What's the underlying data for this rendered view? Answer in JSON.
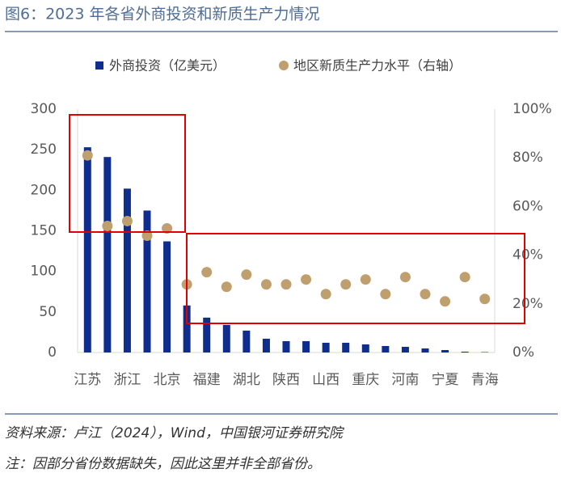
{
  "title": "图6：2023 年各省外商投资和新质生产力情况",
  "chart_data": {
    "type": "bar",
    "categories": [
      "江苏",
      null,
      "浙江",
      null,
      "北京",
      null,
      "福建",
      null,
      "湖北",
      null,
      "陕西",
      null,
      "山西",
      null,
      "重庆",
      null,
      "河南",
      null,
      "宁夏",
      null,
      "青海"
    ],
    "series": [
      {
        "name": "外商投资（亿美元）",
        "type": "bar",
        "color": "#0f2d8c",
        "axis": "y",
        "values": [
          253,
          241,
          202,
          175,
          137,
          58,
          43,
          34,
          27,
          17,
          14,
          14,
          12,
          12,
          10,
          8,
          7,
          5,
          3,
          1,
          0.5
        ]
      },
      {
        "name": "地区新质生产力水平（右轴）",
        "type": "scatter",
        "color": "#bf9f6e",
        "axis": "y2",
        "values": [
          81,
          52,
          54,
          48,
          51,
          28,
          33,
          27,
          32,
          28,
          28,
          30,
          24,
          28,
          30,
          24,
          31,
          24,
          21,
          31,
          22
        ]
      }
    ],
    "ylim": [
      0,
      300
    ],
    "yticks": [
      0,
      50,
      100,
      150,
      200,
      250,
      300
    ],
    "y2lim": [
      0,
      100
    ],
    "y2ticks": [
      {
        "value": 0,
        "label": "0%"
      },
      {
        "value": 20,
        "label": "20%"
      },
      {
        "value": 40,
        "label": "40%"
      },
      {
        "value": 60,
        "label": "60%"
      },
      {
        "value": 80,
        "label": "80%"
      },
      {
        "value": 100,
        "label": "100%"
      }
    ]
  },
  "footer": {
    "source": "资料来源：卢江（2024），Wind，中国银河证券研究院",
    "note": "注：因部分省份数据缺失，因此这里并非全部省份。"
  }
}
